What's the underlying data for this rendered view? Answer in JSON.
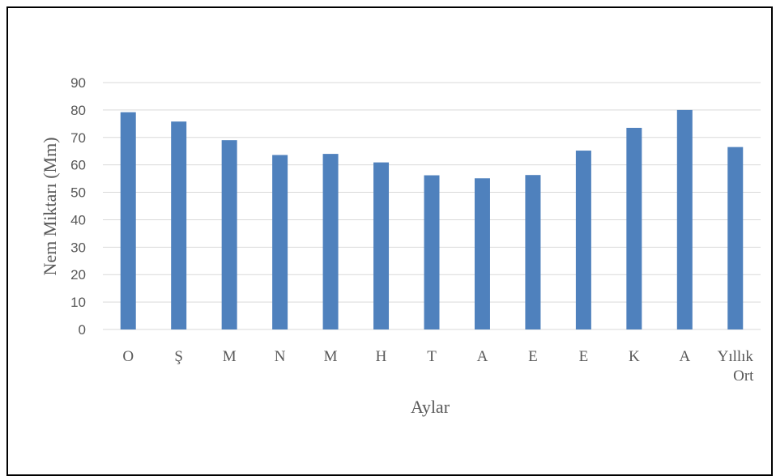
{
  "chart_data": {
    "type": "bar",
    "categories": [
      "O",
      "Ş",
      "M",
      "N",
      "M",
      "H",
      "T",
      "A",
      "E",
      "E",
      "K",
      "A",
      "Yıllık Ort"
    ],
    "values": [
      79.2,
      75.8,
      69.0,
      63.6,
      64.0,
      60.9,
      56.2,
      55.1,
      56.3,
      65.2,
      73.5,
      80.0,
      66.5
    ],
    "xlabel": "Aylar",
    "ylabel": "Nem Miktarı (Mm)",
    "ylim": [
      0,
      90
    ],
    "yticks": [
      0,
      10,
      20,
      30,
      40,
      50,
      60,
      70,
      80,
      90
    ],
    "grid": true,
    "bar_color": "#4F81BD",
    "grid_color": "#D9D9D9"
  }
}
